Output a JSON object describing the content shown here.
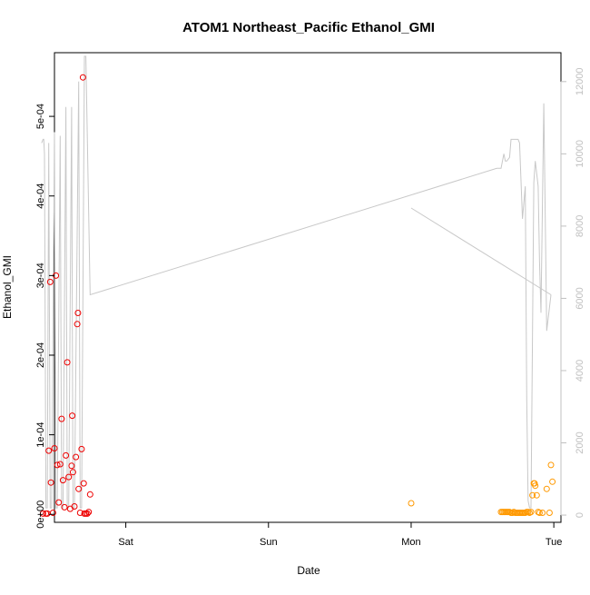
{
  "chart_data": {
    "type": "scatter",
    "title": "ATOM1 Northeast_Pacific Ethanol_GMI",
    "xlabel": "Date",
    "ylabel": "Ethanol_GMI",
    "x_ticks": [
      {
        "label": "Sat",
        "value": 1.0
      },
      {
        "label": "Sun",
        "value": 2.0
      },
      {
        "label": "Mon",
        "value": 3.0
      },
      {
        "label": "Tue",
        "value": 4.0
      }
    ],
    "xlim": [
      0.5,
      4.05
    ],
    "ylim": [
      -1e-05,
      0.00058
    ],
    "y_ticks": [
      {
        "label": "0e+00",
        "value": 0
      },
      {
        "label": "1e-04",
        "value": 0.0001
      },
      {
        "label": "2e-04",
        "value": 0.0002
      },
      {
        "label": "3e-04",
        "value": 0.0003
      },
      {
        "label": "4e-04",
        "value": 0.0004
      },
      {
        "label": "5e-04",
        "value": 0.0005
      }
    ],
    "y2lim": [
      -200,
      12800
    ],
    "y2_ticks": [
      {
        "label": "0",
        "value": 0
      },
      {
        "label": "2000",
        "value": 2000
      },
      {
        "label": "4000",
        "value": 4000
      },
      {
        "label": "6000",
        "value": 6000
      },
      {
        "label": "8000",
        "value": 8000
      },
      {
        "label": "10000",
        "value": 10000
      },
      {
        "label": "12000",
        "value": 12000
      }
    ],
    "colors": {
      "series_red": "#ee0000",
      "series_orange": "#ff9900",
      "altitude": "#c8c8c8",
      "axis": "#000000",
      "right_axis": "#c0c0c0"
    },
    "series": [
      {
        "color_key": "series_red",
        "points": [
          [
            0.42,
            1e-06
          ],
          [
            0.44,
            1e-06
          ],
          [
            0.45,
            1e-06
          ],
          [
            0.46,
            8e-05
          ],
          [
            0.47,
            0.000292
          ],
          [
            0.475,
            4e-05
          ],
          [
            0.49,
            2e-06
          ],
          [
            0.5,
            8.3e-05
          ],
          [
            0.51,
            0.0003
          ],
          [
            0.52,
            6.2e-05
          ],
          [
            0.53,
            1.5e-05
          ],
          [
            0.54,
            6.3e-05
          ],
          [
            0.55,
            0.00012
          ],
          [
            0.56,
            4.3e-05
          ],
          [
            0.57,
            9e-06
          ],
          [
            0.58,
            7.4e-05
          ],
          [
            0.59,
            0.000191
          ],
          [
            0.6,
            4.7e-05
          ],
          [
            0.61,
            7e-06
          ],
          [
            0.62,
            6.1e-05
          ],
          [
            0.625,
            0.000124
          ],
          [
            0.63,
            5.3e-05
          ],
          [
            0.64,
            1e-05
          ],
          [
            0.65,
            7.2e-05
          ],
          [
            0.66,
            0.000239
          ],
          [
            0.665,
            0.000253
          ],
          [
            0.67,
            3.2e-05
          ],
          [
            0.68,
            2e-06
          ],
          [
            0.69,
            8.2e-05
          ],
          [
            0.7,
            0.000549
          ],
          [
            0.705,
            3.9e-05
          ],
          [
            0.71,
            1e-06
          ],
          [
            0.72,
            1e-06
          ],
          [
            0.73,
            1e-06
          ],
          [
            0.74,
            3e-06
          ],
          [
            0.75,
            2.5e-05
          ]
        ]
      },
      {
        "color_key": "series_orange",
        "points": [
          [
            3.0,
            1.4e-05
          ],
          [
            3.63,
            3e-06
          ],
          [
            3.64,
            3e-06
          ],
          [
            3.65,
            3e-06
          ],
          [
            3.66,
            3e-06
          ],
          [
            3.67,
            3e-06
          ],
          [
            3.68,
            3e-06
          ],
          [
            3.69,
            3e-06
          ],
          [
            3.7,
            2e-06
          ],
          [
            3.71,
            2e-06
          ],
          [
            3.72,
            3e-06
          ],
          [
            3.73,
            2e-06
          ],
          [
            3.74,
            2e-06
          ],
          [
            3.75,
            2e-06
          ],
          [
            3.76,
            2e-06
          ],
          [
            3.77,
            2e-06
          ],
          [
            3.78,
            2e-06
          ],
          [
            3.79,
            2e-06
          ],
          [
            3.8,
            2e-06
          ],
          [
            3.81,
            3e-06
          ],
          [
            3.82,
            3e-06
          ],
          [
            3.83,
            2e-06
          ],
          [
            3.84,
            3e-06
          ],
          [
            3.85,
            2.4e-05
          ],
          [
            3.86,
            3.9e-05
          ],
          [
            3.865,
            3.9e-05
          ],
          [
            3.87,
            3.6e-05
          ],
          [
            3.88,
            2.4e-05
          ],
          [
            3.89,
            3e-06
          ],
          [
            3.9,
            2e-06
          ],
          [
            3.92,
            2e-06
          ],
          [
            3.95,
            3.2e-05
          ],
          [
            3.97,
            2e-06
          ],
          [
            3.98,
            6.2e-05
          ],
          [
            3.99,
            4.1e-05
          ]
        ]
      }
    ],
    "altitude_line": [
      [
        0.41,
        10300
      ],
      [
        0.42,
        10400
      ],
      [
        0.425,
        10400
      ],
      [
        0.43,
        10000
      ],
      [
        0.44,
        200
      ],
      [
        0.45,
        200
      ],
      [
        0.46,
        10300
      ],
      [
        0.47,
        200
      ],
      [
        0.48,
        200
      ],
      [
        0.5,
        10600
      ],
      [
        0.51,
        200
      ],
      [
        0.52,
        200
      ],
      [
        0.54,
        10500
      ],
      [
        0.55,
        200
      ],
      [
        0.56,
        200
      ],
      [
        0.58,
        11300
      ],
      [
        0.59,
        200
      ],
      [
        0.6,
        200
      ],
      [
        0.62,
        11300
      ],
      [
        0.63,
        200
      ],
      [
        0.64,
        200
      ],
      [
        0.67,
        12000
      ],
      [
        0.68,
        200
      ],
      [
        0.69,
        200
      ],
      [
        0.71,
        12700
      ],
      [
        0.72,
        12700
      ],
      [
        0.75,
        6100
      ],
      [
        3.6,
        9600
      ],
      [
        3.63,
        9600
      ],
      [
        3.65,
        10000
      ],
      [
        3.66,
        9800
      ],
      [
        3.67,
        9800
      ],
      [
        3.69,
        9900
      ],
      [
        3.7,
        10400
      ],
      [
        3.75,
        10400
      ],
      [
        3.76,
        10300
      ],
      [
        3.78,
        8200
      ],
      [
        3.8,
        9100
      ],
      [
        3.81,
        3200
      ],
      [
        3.82,
        400
      ],
      [
        3.83,
        200
      ],
      [
        3.84,
        200
      ],
      [
        3.86,
        9200
      ],
      [
        3.87,
        9800
      ],
      [
        3.89,
        9100
      ],
      [
        3.9,
        7000
      ],
      [
        3.91,
        5600
      ],
      [
        3.93,
        11400
      ],
      [
        3.95,
        5100
      ],
      [
        3.98,
        6100
      ]
    ],
    "altitude_line_2": [
      [
        3.0,
        8500
      ],
      [
        3.98,
        6100
      ]
    ]
  }
}
